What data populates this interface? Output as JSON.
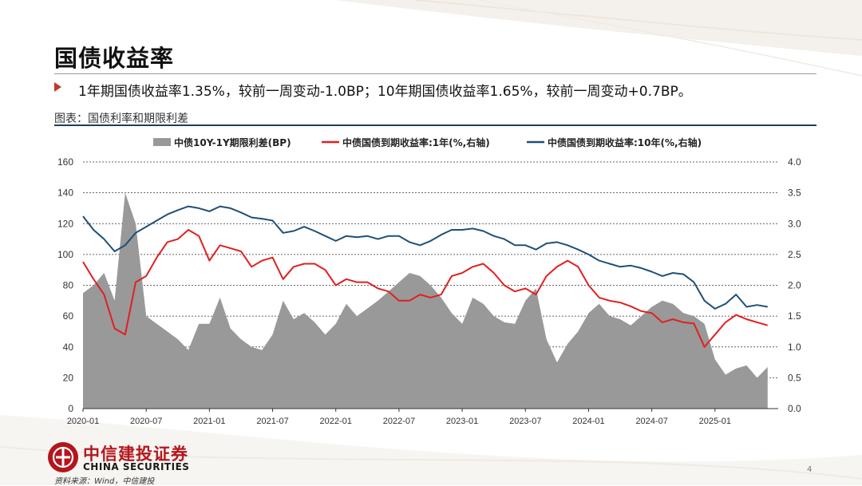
{
  "slide": {
    "title": "国债收益率",
    "bullet": "1年期国债收益率1.35%，较前一周变动-1.0BP；10年期国债收益率1.65%，较前一周变动+0.7BP。",
    "chart_caption": "图表：国债利率和期限利差",
    "logo_cn": "中信建投证券",
    "logo_en": "CHINA SECURITIES",
    "source": "资料来源：Wind，中信建投",
    "page_number": "4"
  },
  "colors": {
    "spread": "#999999",
    "y1": "#e02020",
    "y10": "#1f5077",
    "accent_red": "#b3161c"
  },
  "chart_data": {
    "type": "area+line",
    "legend_placement": "top",
    "grid": "dashed horizontal",
    "x_ticks": [
      "2020-01",
      "2020-07",
      "2021-01",
      "2021-07",
      "2022-01",
      "2022-07",
      "2023-01",
      "2023-07",
      "2024-01",
      "2024-07",
      "2025-01"
    ],
    "y_left": {
      "range": [
        0,
        160
      ],
      "ticks": [
        "0",
        "20",
        "40",
        "60",
        "80",
        "100",
        "120",
        "140",
        "160"
      ]
    },
    "y_right": {
      "range": [
        0.0,
        4.0
      ],
      "ticks": [
        "0.0",
        "0.5",
        "1.0",
        "1.5",
        "2.0",
        "2.5",
        "3.0",
        "3.5",
        "4.0"
      ]
    },
    "series": [
      {
        "name": "中债10Y-1Y期限利差(BP)",
        "type": "area",
        "axis": "left",
        "x": [
          "2020-01",
          "2020-02",
          "2020-03",
          "2020-04",
          "2020-05",
          "2020-06",
          "2020-07",
          "2020-08",
          "2020-09",
          "2020-10",
          "2020-11",
          "2020-12",
          "2021-01",
          "2021-02",
          "2021-03",
          "2021-04",
          "2021-05",
          "2021-06",
          "2021-07",
          "2021-08",
          "2021-09",
          "2021-10",
          "2021-11",
          "2021-12",
          "2022-01",
          "2022-02",
          "2022-03",
          "2022-04",
          "2022-05",
          "2022-06",
          "2022-07",
          "2022-08",
          "2022-09",
          "2022-10",
          "2022-11",
          "2022-12",
          "2023-01",
          "2023-02",
          "2023-03",
          "2023-04",
          "2023-05",
          "2023-06",
          "2023-07",
          "2023-08",
          "2023-09",
          "2023-10",
          "2023-11",
          "2023-12",
          "2024-01",
          "2024-02",
          "2024-03",
          "2024-04",
          "2024-05",
          "2024-06",
          "2024-07",
          "2024-08",
          "2024-09",
          "2024-10",
          "2024-11",
          "2024-12",
          "2025-01",
          "2025-02",
          "2025-03",
          "2025-04",
          "2025-05",
          "2025-06"
        ],
        "values": [
          75,
          80,
          88,
          70,
          140,
          120,
          60,
          55,
          50,
          45,
          38,
          55,
          55,
          72,
          52,
          45,
          40,
          38,
          48,
          70,
          58,
          62,
          56,
          48,
          55,
          68,
          60,
          65,
          70,
          76,
          82,
          88,
          86,
          80,
          72,
          62,
          55,
          72,
          68,
          60,
          56,
          55,
          70,
          78,
          45,
          30,
          42,
          50,
          62,
          68,
          60,
          58,
          54,
          60,
          66,
          70,
          68,
          62,
          60,
          55,
          32,
          22,
          26,
          28,
          20,
          27
        ]
      },
      {
        "name": "中债国债到期收益率:1年(%,右轴)",
        "type": "line",
        "axis": "right",
        "x": [
          "2020-01",
          "2020-02",
          "2020-03",
          "2020-04",
          "2020-05",
          "2020-06",
          "2020-07",
          "2020-08",
          "2020-09",
          "2020-10",
          "2020-11",
          "2020-12",
          "2021-01",
          "2021-02",
          "2021-03",
          "2021-04",
          "2021-05",
          "2021-06",
          "2021-07",
          "2021-08",
          "2021-09",
          "2021-10",
          "2021-11",
          "2021-12",
          "2022-01",
          "2022-02",
          "2022-03",
          "2022-04",
          "2022-05",
          "2022-06",
          "2022-07",
          "2022-08",
          "2022-09",
          "2022-10",
          "2022-11",
          "2022-12",
          "2023-01",
          "2023-02",
          "2023-03",
          "2023-04",
          "2023-05",
          "2023-06",
          "2023-07",
          "2023-08",
          "2023-09",
          "2023-10",
          "2023-11",
          "2023-12",
          "2024-01",
          "2024-02",
          "2024-03",
          "2024-04",
          "2024-05",
          "2024-06",
          "2024-07",
          "2024-08",
          "2024-09",
          "2024-10",
          "2024-11",
          "2024-12",
          "2025-01",
          "2025-02",
          "2025-03",
          "2025-04",
          "2025-05",
          "2025-06"
        ],
        "values": [
          2.38,
          2.1,
          1.85,
          1.3,
          1.2,
          2.05,
          2.15,
          2.45,
          2.7,
          2.75,
          2.9,
          2.8,
          2.4,
          2.65,
          2.6,
          2.55,
          2.3,
          2.4,
          2.45,
          2.1,
          2.3,
          2.35,
          2.35,
          2.25,
          2.0,
          2.1,
          2.05,
          2.05,
          1.95,
          1.9,
          1.75,
          1.75,
          1.85,
          1.8,
          1.85,
          2.15,
          2.2,
          2.3,
          2.35,
          2.2,
          2.0,
          1.9,
          1.95,
          1.85,
          2.15,
          2.3,
          2.4,
          2.3,
          2.0,
          1.8,
          1.75,
          1.72,
          1.66,
          1.58,
          1.55,
          1.4,
          1.45,
          1.4,
          1.38,
          1.0,
          1.2,
          1.4,
          1.52,
          1.45,
          1.4,
          1.35
        ]
      },
      {
        "name": "中债国债到期收益率:10年(%,右轴)",
        "type": "line",
        "axis": "right",
        "x": [
          "2020-01",
          "2020-02",
          "2020-03",
          "2020-04",
          "2020-05",
          "2020-06",
          "2020-07",
          "2020-08",
          "2020-09",
          "2020-10",
          "2020-11",
          "2020-12",
          "2021-01",
          "2021-02",
          "2021-03",
          "2021-04",
          "2021-05",
          "2021-06",
          "2021-07",
          "2021-08",
          "2021-09",
          "2021-10",
          "2021-11",
          "2021-12",
          "2022-01",
          "2022-02",
          "2022-03",
          "2022-04",
          "2022-05",
          "2022-06",
          "2022-07",
          "2022-08",
          "2022-09",
          "2022-10",
          "2022-11",
          "2022-12",
          "2023-01",
          "2023-02",
          "2023-03",
          "2023-04",
          "2023-05",
          "2023-06",
          "2023-07",
          "2023-08",
          "2023-09",
          "2023-10",
          "2023-11",
          "2023-12",
          "2024-01",
          "2024-02",
          "2024-03",
          "2024-04",
          "2024-05",
          "2024-06",
          "2024-07",
          "2024-08",
          "2024-09",
          "2024-10",
          "2024-11",
          "2024-12",
          "2025-01",
          "2025-02",
          "2025-03",
          "2025-04",
          "2025-05",
          "2025-06"
        ],
        "values": [
          3.12,
          2.9,
          2.75,
          2.55,
          2.65,
          2.85,
          2.95,
          3.05,
          3.15,
          3.22,
          3.28,
          3.25,
          3.2,
          3.28,
          3.25,
          3.18,
          3.1,
          3.08,
          3.05,
          2.85,
          2.88,
          2.95,
          2.88,
          2.8,
          2.72,
          2.8,
          2.78,
          2.8,
          2.75,
          2.8,
          2.8,
          2.7,
          2.65,
          2.72,
          2.82,
          2.9,
          2.9,
          2.92,
          2.88,
          2.8,
          2.75,
          2.65,
          2.65,
          2.58,
          2.68,
          2.7,
          2.65,
          2.58,
          2.5,
          2.4,
          2.35,
          2.3,
          2.32,
          2.28,
          2.22,
          2.15,
          2.2,
          2.18,
          2.05,
          1.75,
          1.62,
          1.7,
          1.85,
          1.65,
          1.68,
          1.65
        ]
      }
    ]
  }
}
